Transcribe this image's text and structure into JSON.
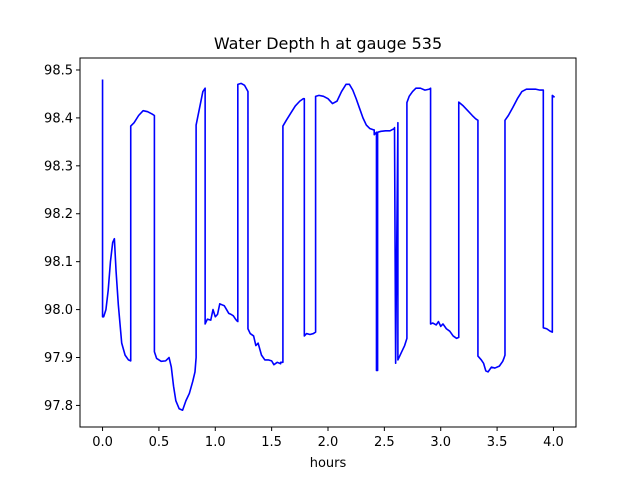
{
  "chart_data": {
    "type": "line",
    "title": "Water Depth h at gauge 535",
    "xlabel": "hours",
    "ylabel": "",
    "xlim": [
      -0.2,
      4.2
    ],
    "ylim": [
      97.755,
      98.525
    ],
    "xticks": [
      0.0,
      0.5,
      1.0,
      1.5,
      2.0,
      2.5,
      3.0,
      3.5,
      4.0
    ],
    "xtick_labels": [
      "0.0",
      "0.5",
      "1.0",
      "1.5",
      "2.0",
      "2.5",
      "3.0",
      "3.5",
      "4.0"
    ],
    "yticks": [
      97.8,
      97.9,
      98.0,
      98.1,
      98.2,
      98.3,
      98.4,
      98.5
    ],
    "ytick_labels": [
      "97.8",
      "97.9",
      "98.0",
      "98.1",
      "98.2",
      "98.3",
      "98.4",
      "98.5"
    ],
    "grid": false,
    "series": [
      {
        "color": "#0000ff",
        "x": [
          0.0,
          0.0,
          0.01,
          0.03,
          0.05,
          0.07,
          0.09,
          0.105,
          0.12,
          0.14,
          0.17,
          0.2,
          0.23,
          0.25,
          0.25,
          0.28,
          0.32,
          0.36,
          0.4,
          0.44,
          0.46,
          0.46,
          0.48,
          0.52,
          0.56,
          0.59,
          0.61,
          0.63,
          0.65,
          0.68,
          0.71,
          0.74,
          0.77,
          0.8,
          0.82,
          0.83,
          0.83,
          0.86,
          0.89,
          0.91,
          0.91,
          0.93,
          0.96,
          0.98,
          1.0,
          1.02,
          1.04,
          1.06,
          1.08,
          1.1,
          1.12,
          1.14,
          1.16,
          1.18,
          1.19,
          1.2,
          1.2,
          1.23,
          1.26,
          1.29,
          1.29,
          1.31,
          1.34,
          1.36,
          1.38,
          1.41,
          1.44,
          1.47,
          1.5,
          1.52,
          1.55,
          1.58,
          1.58,
          1.6,
          1.6,
          1.63,
          1.67,
          1.71,
          1.75,
          1.78,
          1.79,
          1.79,
          1.81,
          1.84,
          1.87,
          1.89,
          1.89,
          1.92,
          1.96,
          2.0,
          2.04,
          2.08,
          2.12,
          2.16,
          2.19,
          2.22,
          2.25,
          2.28,
          2.31,
          2.34,
          2.37,
          2.405,
          2.41,
          2.41,
          2.43,
          2.43,
          2.44,
          2.44,
          2.47,
          2.51,
          2.55,
          2.59,
          2.59,
          2.6,
          2.6,
          2.62,
          2.62,
          2.65,
          2.68,
          2.7,
          2.7,
          2.72,
          2.75,
          2.78,
          2.82,
          2.86,
          2.9,
          2.91,
          2.91,
          2.93,
          2.96,
          2.98,
          3.0,
          3.02,
          3.05,
          3.08,
          3.11,
          3.14,
          3.16,
          3.16,
          3.2,
          3.24,
          3.28,
          3.31,
          3.33,
          3.33,
          3.36,
          3.38,
          3.4,
          3.42,
          3.45,
          3.48,
          3.52,
          3.55,
          3.56,
          3.57,
          3.57,
          3.6,
          3.64,
          3.68,
          3.72,
          3.76,
          3.8,
          3.84,
          3.88,
          3.91,
          3.91,
          3.94,
          3.97,
          3.99,
          3.99,
          4.01
        ],
        "y": [
          98.48,
          97.985,
          97.985,
          98.0,
          98.04,
          98.1,
          98.14,
          98.148,
          98.08,
          98.01,
          97.93,
          97.905,
          97.895,
          97.893,
          98.383,
          98.39,
          98.405,
          98.415,
          98.413,
          98.408,
          98.405,
          97.912,
          97.898,
          97.892,
          97.893,
          97.9,
          97.88,
          97.84,
          97.81,
          97.793,
          97.79,
          97.81,
          97.825,
          97.85,
          97.87,
          97.9,
          98.385,
          98.42,
          98.455,
          98.462,
          97.97,
          97.98,
          97.978,
          98.0,
          97.985,
          97.99,
          98.012,
          98.01,
          98.008,
          98.0,
          97.992,
          97.99,
          97.987,
          97.98,
          97.977,
          97.975,
          98.47,
          98.472,
          98.468,
          98.455,
          97.96,
          97.95,
          97.945,
          97.925,
          97.93,
          97.905,
          97.895,
          97.895,
          97.893,
          97.885,
          97.89,
          97.887,
          97.89,
          97.89,
          98.383,
          98.395,
          98.41,
          98.425,
          98.435,
          98.44,
          98.44,
          97.945,
          97.95,
          97.948,
          97.95,
          97.953,
          98.445,
          98.447,
          98.445,
          98.44,
          98.43,
          98.435,
          98.455,
          98.47,
          98.47,
          98.458,
          98.44,
          98.42,
          98.4,
          98.385,
          98.378,
          98.375,
          98.375,
          98.365,
          98.37,
          97.873,
          97.873,
          98.37,
          98.372,
          98.373,
          98.373,
          98.378,
          98.38,
          97.888,
          97.888,
          98.39,
          97.895,
          97.91,
          97.925,
          97.94,
          98.432,
          98.445,
          98.455,
          98.462,
          98.462,
          98.458,
          98.46,
          98.462,
          97.97,
          97.972,
          97.968,
          97.975,
          97.965,
          97.97,
          97.96,
          97.955,
          97.945,
          97.94,
          97.942,
          98.433,
          98.425,
          98.415,
          98.405,
          98.398,
          98.395,
          97.903,
          97.895,
          97.888,
          97.872,
          97.87,
          97.88,
          97.878,
          97.882,
          97.892,
          97.898,
          97.905,
          98.395,
          98.405,
          98.422,
          98.44,
          98.455,
          98.46,
          98.46,
          98.46,
          98.458,
          98.458,
          97.962,
          97.96,
          97.955,
          97.953,
          98.447,
          98.443
        ]
      }
    ]
  }
}
